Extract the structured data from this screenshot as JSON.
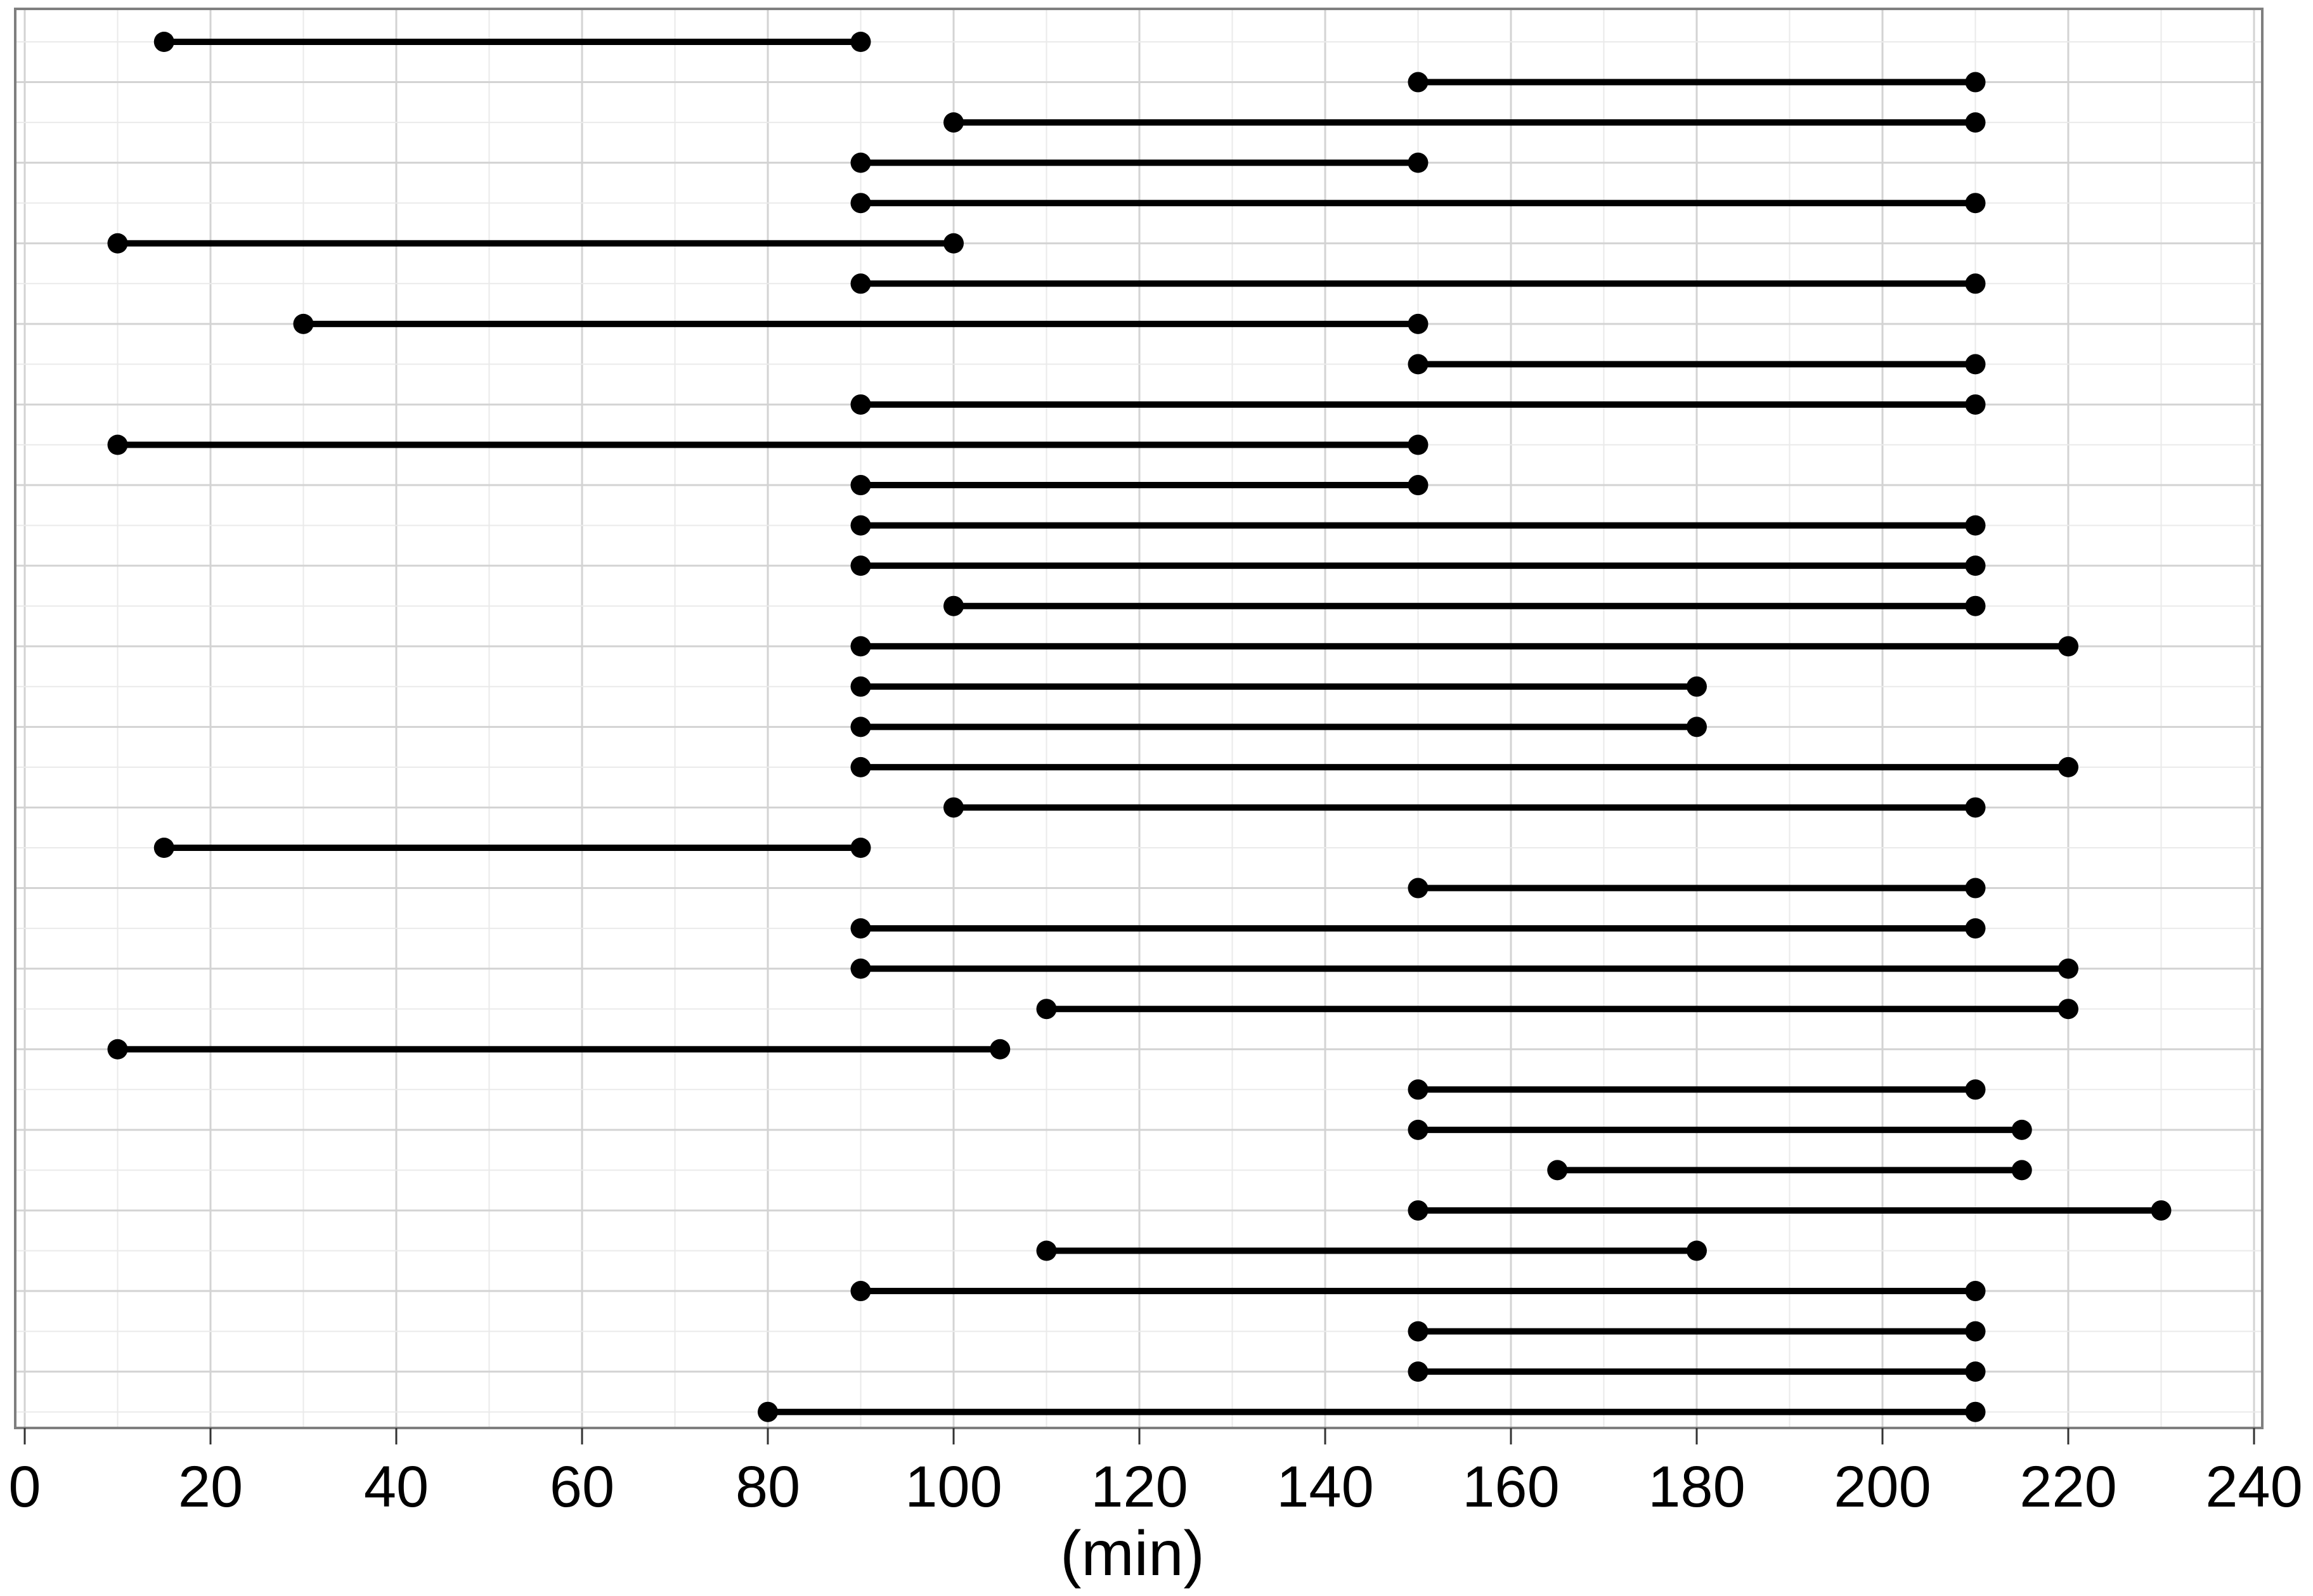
{
  "chart_data": {
    "type": "dumbbell",
    "title": "",
    "xlabel": "(min)",
    "ylabel": "",
    "xlim": [
      0,
      240
    ],
    "x_tick_step": 20,
    "x_minor_step": 10,
    "x_tick_labels": [
      "0",
      "20",
      "40",
      "60",
      "80",
      "100",
      "120",
      "140",
      "160",
      "180",
      "200",
      "220",
      "240"
    ],
    "x_tick_values": [
      0,
      20,
      40,
      60,
      80,
      100,
      120,
      140,
      160,
      180,
      200,
      220,
      240
    ],
    "grid": "major-and-minor, light gray on white panel with gray border",
    "legend_position": "none",
    "n_intervals": 35,
    "intervals": [
      {
        "start": 15,
        "end": 90
      },
      {
        "start": 150,
        "end": 210
      },
      {
        "start": 100,
        "end": 210
      },
      {
        "start": 90,
        "end": 150
      },
      {
        "start": 90,
        "end": 210
      },
      {
        "start": 10,
        "end": 100
      },
      {
        "start": 90,
        "end": 210
      },
      {
        "start": 30,
        "end": 150
      },
      {
        "start": 150,
        "end": 210
      },
      {
        "start": 90,
        "end": 210
      },
      {
        "start": 10,
        "end": 150
      },
      {
        "start": 90,
        "end": 150
      },
      {
        "start": 90,
        "end": 210
      },
      {
        "start": 90,
        "end": 210
      },
      {
        "start": 100,
        "end": 210
      },
      {
        "start": 90,
        "end": 220
      },
      {
        "start": 90,
        "end": 180
      },
      {
        "start": 90,
        "end": 180
      },
      {
        "start": 90,
        "end": 220
      },
      {
        "start": 100,
        "end": 210
      },
      {
        "start": 15,
        "end": 90
      },
      {
        "start": 150,
        "end": 210
      },
      {
        "start": 90,
        "end": 210
      },
      {
        "start": 90,
        "end": 220
      },
      {
        "start": 110,
        "end": 220
      },
      {
        "start": 10,
        "end": 105
      },
      {
        "start": 150,
        "end": 210
      },
      {
        "start": 150,
        "end": 215
      },
      {
        "start": 165,
        "end": 215
      },
      {
        "start": 150,
        "end": 230
      },
      {
        "start": 110,
        "end": 180
      },
      {
        "start": 90,
        "end": 210
      },
      {
        "start": 150,
        "end": 210
      },
      {
        "start": 150,
        "end": 210
      },
      {
        "start": 80,
        "end": 210
      }
    ]
  },
  "colors": {
    "segment": "#000000",
    "endpoint_dot": "#000000",
    "gridline_major": "#d3d3d3",
    "gridline_minor": "#eaeaea",
    "panel_border": "#7f7f7f",
    "axis_tick": "#333333",
    "tick_label": "#000000",
    "background": "#ffffff"
  }
}
